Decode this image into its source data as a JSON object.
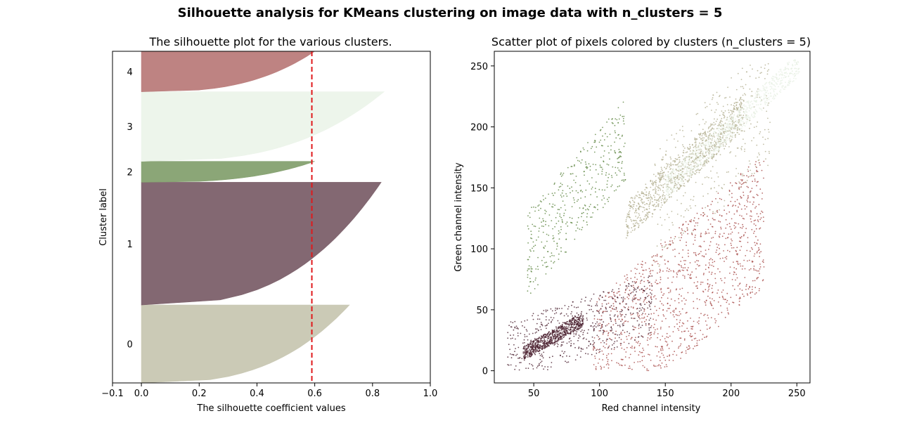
{
  "suptitle": "Silhouette analysis for KMeans clustering on image data with n_clusters = 5",
  "chart_data": [
    {
      "type": "area",
      "title": "The silhouette plot for the various clusters.",
      "xlabel": "The silhouette coefficient values",
      "ylabel": "Cluster label",
      "xlim": [
        -0.1,
        1.0
      ],
      "xticks": [
        -0.1,
        0.0,
        0.2,
        0.4,
        0.6,
        0.8,
        1.0
      ],
      "xtick_labels": [
        "−0.1",
        "0.0",
        "0.2",
        "0.4",
        "0.6",
        "0.8",
        "1.0"
      ],
      "yticks": [],
      "average_silhouette": 0.59,
      "clusters": [
        {
          "label": "0",
          "color": "#c8c7b2",
          "max": 0.72,
          "y_start": 0.0,
          "y_end": 0.235
        },
        {
          "label": "1",
          "color": "#7c606a",
          "max": 0.83,
          "y_start": 0.235,
          "y_end": 0.605
        },
        {
          "label": "2",
          "color": "#85a170",
          "max": 0.6,
          "y_start": 0.605,
          "y_end": 0.668
        },
        {
          "label": "3",
          "color": "#ecf4ea",
          "max": 0.84,
          "y_start": 0.668,
          "y_end": 0.878
        },
        {
          "label": "4",
          "color": "#ba7c7b",
          "max": 0.6,
          "y_start": 0.878,
          "y_end": 1.0
        }
      ]
    },
    {
      "type": "scatter",
      "title": "Scatter plot of pixels colored by clusters (n_clusters = 5)",
      "xlabel": "Red channel intensity",
      "ylabel": "Green channel intensity",
      "xlim": [
        20,
        260
      ],
      "ylim": [
        -10,
        262
      ],
      "xticks": [
        50,
        100,
        150,
        200,
        250
      ],
      "yticks": [
        0,
        50,
        100,
        150,
        200,
        250
      ],
      "clusters": [
        {
          "label": "0",
          "color": "#b2ae8e",
          "regions": [
            {
              "x": [
                120,
                210
              ],
              "y_offset": [
                -12,
                18
              ],
              "slope": 1.0,
              "n": 900
            },
            {
              "x": [
                140,
                230
              ],
              "y_offset": [
                -60,
                40
              ],
              "slope": 1.0,
              "n": 350
            }
          ]
        },
        {
          "label": "1",
          "color": "#4a1f2e",
          "regions": [
            {
              "x": [
                42,
                88
              ],
              "y_offset": [
                -6,
                6
              ],
              "slope": 0.55,
              "n": 700
            },
            {
              "x": [
                30,
                140
              ],
              "y_offset": [
                -20,
                30
              ],
              "slope": 0.3,
              "n": 550
            }
          ]
        },
        {
          "label": "2",
          "color": "#5d8440",
          "regions": [
            {
              "x": [
                45,
                120
              ],
              "y_offset": [
                20,
                90
              ],
              "slope": 1.1,
              "n": 420
            }
          ]
        },
        {
          "label": "3",
          "color": "#e7f0e3",
          "regions": [
            {
              "x": [
                150,
                252
              ],
              "y_offset": [
                -10,
                10
              ],
              "slope": 1.0,
              "n": 900
            }
          ]
        },
        {
          "label": "4",
          "color": "#a54745",
          "regions": [
            {
              "x": [
                95,
                225
              ],
              "y_offset": [
                -85,
                25
              ],
              "slope": 0.95,
              "n": 1300
            }
          ]
        }
      ]
    }
  ]
}
